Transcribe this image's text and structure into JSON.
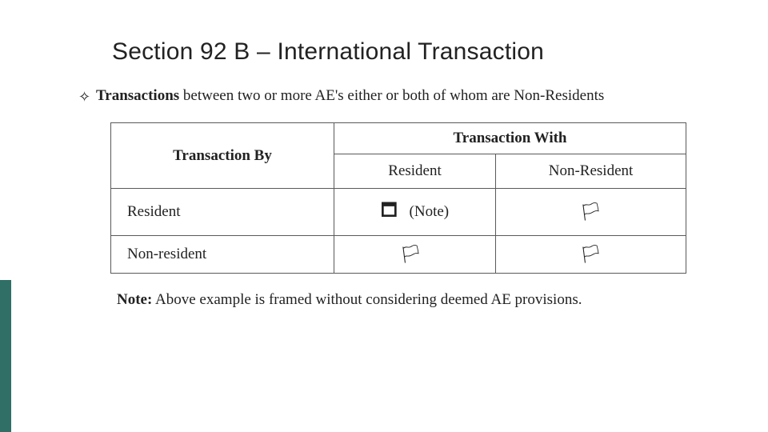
{
  "accent_color": "#2f6f66",
  "title": "Section 92 B – International Transaction",
  "bullet": {
    "marker": "✧",
    "strong": "Transactions",
    "rest": " between two or more AE's either or both of whom are Non-Residents"
  },
  "table": {
    "header_by": "Transaction By",
    "header_with": "Transaction With",
    "sub_resident": "Resident",
    "sub_nonresident": "Non-Resident",
    "rows": [
      {
        "label": "Resident",
        "c1_symbol": "🗖",
        "c1_note": "(Note)",
        "c2_symbol": "🏳"
      },
      {
        "label": "Non-resident",
        "c1_symbol": "🏳",
        "c1_note": "",
        "c2_symbol": "🏳"
      }
    ]
  },
  "footnote": {
    "strong": "Note:",
    "rest": " Above example is framed without considering deemed  AE provisions."
  }
}
